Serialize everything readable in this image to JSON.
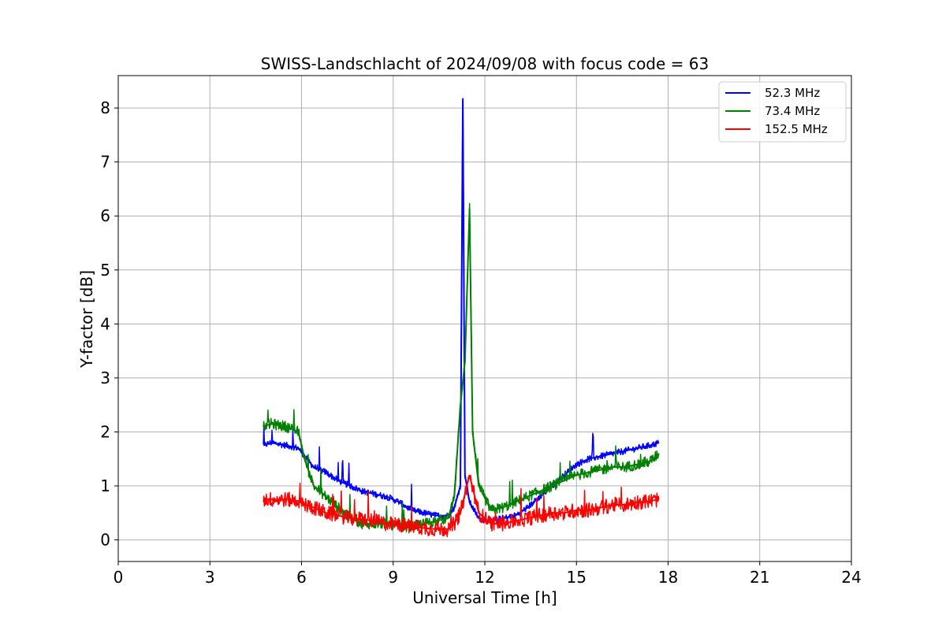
{
  "chart_data": {
    "type": "line",
    "title": "SWISS-Landschlacht of 2024/09/08 with focus code = 63",
    "xlabel": "Universal Time [h]",
    "ylabel": "Y-factor [dB]",
    "xlim": [
      0,
      24
    ],
    "ylim": [
      -0.4,
      8.6
    ],
    "xticks": [
      "0",
      "3",
      "6",
      "9",
      "12",
      "15",
      "18",
      "21",
      "24"
    ],
    "yticks": [
      "0",
      "1",
      "2",
      "3",
      "4",
      "5",
      "6",
      "7",
      "8"
    ],
    "grid": true,
    "legend_position": "top-right",
    "series": [
      {
        "name": "52.3 MHz",
        "color": "#0000ff",
        "x": [
          4.75,
          5.0,
          5.5,
          5.9,
          6.1,
          6.4,
          6.8,
          7.2,
          7.6,
          8.0,
          8.4,
          8.8,
          9.2,
          9.6,
          10.0,
          10.4,
          10.8,
          11.0,
          11.2,
          11.28,
          11.35,
          11.5,
          11.8,
          12.2,
          12.6,
          13.0,
          13.4,
          13.8,
          14.2,
          14.6,
          15.0,
          15.4,
          15.8,
          16.2,
          16.6,
          17.0,
          17.4,
          17.7
        ],
        "y": [
          1.75,
          1.8,
          1.75,
          1.7,
          1.55,
          1.35,
          1.25,
          1.1,
          1.0,
          0.9,
          0.85,
          0.8,
          0.7,
          0.55,
          0.5,
          0.45,
          0.45,
          0.6,
          1.0,
          8.18,
          1.2,
          0.7,
          0.4,
          0.35,
          0.4,
          0.45,
          0.6,
          0.8,
          1.0,
          1.2,
          1.4,
          1.5,
          1.55,
          1.6,
          1.65,
          1.7,
          1.75,
          1.8
        ]
      },
      {
        "name": "73.4 MHz",
        "color": "#008000",
        "x": [
          4.75,
          5.0,
          5.5,
          5.9,
          6.1,
          6.4,
          6.8,
          7.2,
          7.6,
          8.0,
          8.4,
          8.8,
          9.2,
          9.6,
          10.0,
          10.4,
          10.8,
          11.0,
          11.2,
          11.35,
          11.5,
          11.6,
          11.8,
          12.2,
          12.6,
          13.0,
          13.4,
          13.8,
          14.2,
          14.6,
          15.0,
          15.4,
          15.8,
          16.2,
          16.6,
          17.0,
          17.4,
          17.7
        ],
        "y": [
          2.1,
          2.15,
          2.1,
          2.0,
          1.5,
          1.0,
          0.8,
          0.6,
          0.4,
          0.3,
          0.3,
          0.3,
          0.25,
          0.25,
          0.3,
          0.35,
          0.4,
          0.8,
          2.5,
          3.3,
          6.13,
          2.0,
          1.0,
          0.55,
          0.6,
          0.7,
          0.8,
          0.9,
          1.0,
          1.1,
          1.2,
          1.25,
          1.3,
          1.35,
          1.35,
          1.4,
          1.45,
          1.6
        ]
      },
      {
        "name": "152.5 MHz",
        "color": "#ff0000",
        "x": [
          4.75,
          5.0,
          5.5,
          5.9,
          6.1,
          6.4,
          6.8,
          7.2,
          7.6,
          8.0,
          8.4,
          8.8,
          9.2,
          9.6,
          10.0,
          10.4,
          10.8,
          11.0,
          11.2,
          11.5,
          11.8,
          12.2,
          12.6,
          13.0,
          13.4,
          13.8,
          14.2,
          14.6,
          15.0,
          15.4,
          15.8,
          16.2,
          16.6,
          17.0,
          17.4,
          17.7
        ],
        "y": [
          0.75,
          0.75,
          0.75,
          0.72,
          0.65,
          0.6,
          0.5,
          0.45,
          0.4,
          0.38,
          0.35,
          0.3,
          0.28,
          0.25,
          0.22,
          0.2,
          0.2,
          0.3,
          0.5,
          1.2,
          0.5,
          0.3,
          0.3,
          0.35,
          0.4,
          0.45,
          0.5,
          0.5,
          0.55,
          0.55,
          0.6,
          0.65,
          0.65,
          0.7,
          0.72,
          0.75
        ]
      }
    ]
  }
}
